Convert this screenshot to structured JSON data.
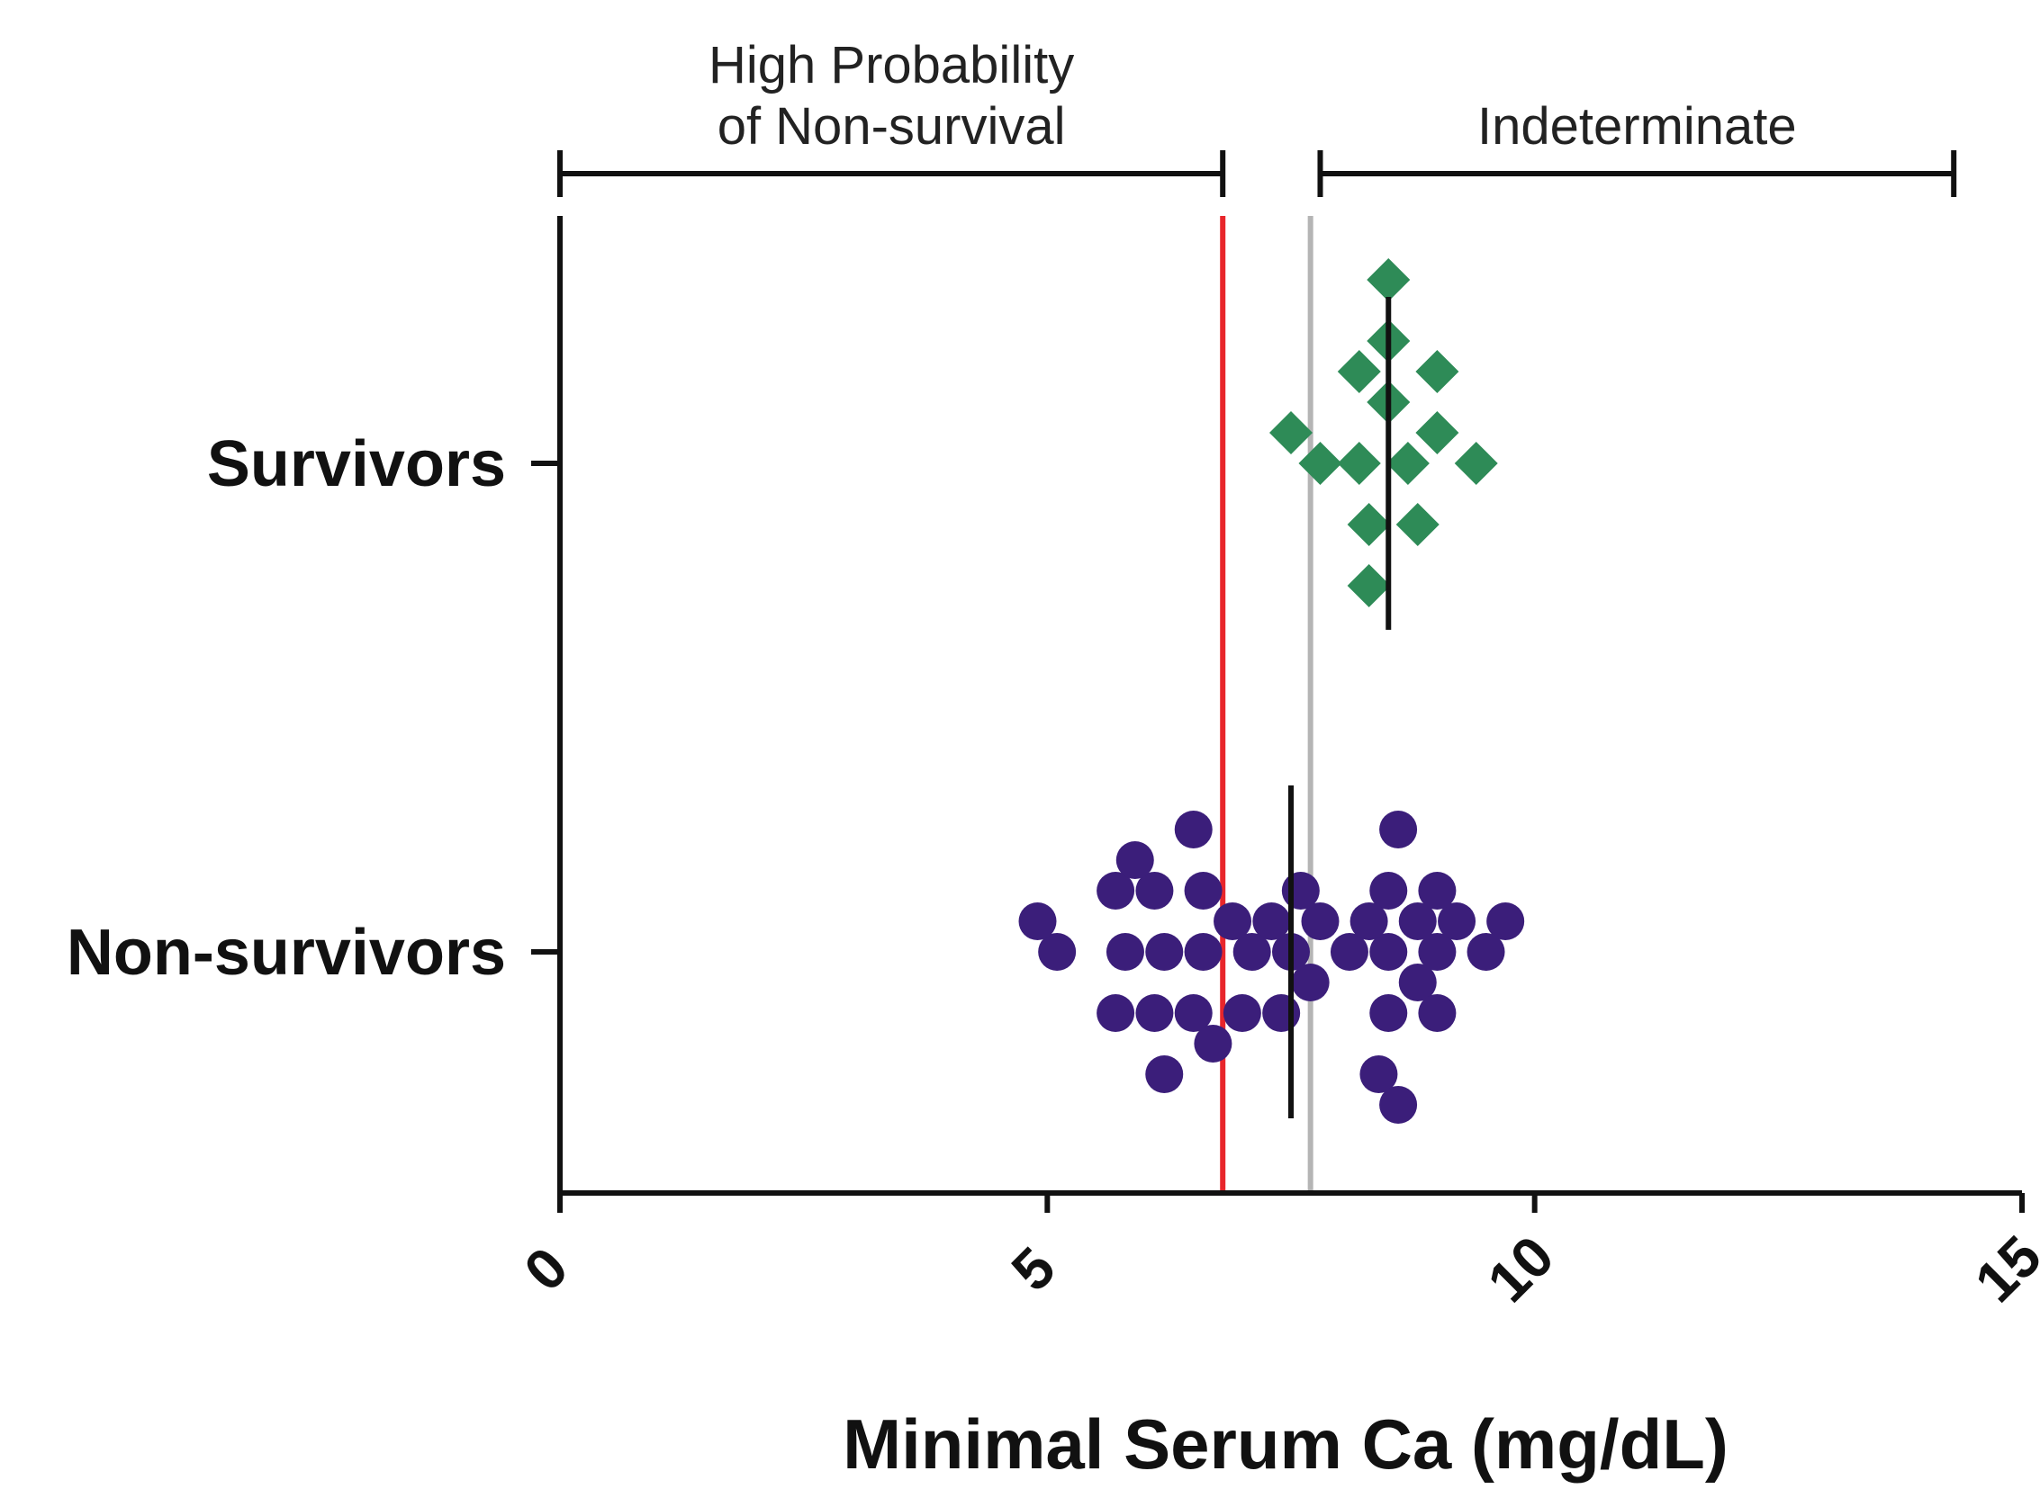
{
  "chart_data": {
    "type": "scatter",
    "title": "",
    "xlabel": "Minimal Serum Ca (mg/dL)",
    "ylabel": "",
    "xlim": [
      0,
      15
    ],
    "x_ticks": [
      0,
      5,
      10,
      15
    ],
    "x_tick_labels": [
      "0",
      "5",
      "10",
      "15"
    ],
    "categories": [
      "Survivors",
      "Non-survivors"
    ],
    "reference_lines": [
      {
        "name": "cutoff-high-probability",
        "x": 6.8,
        "color": "#e8262b"
      },
      {
        "name": "cutoff-indeterminate",
        "x": 7.7,
        "color": "#b5b5b5"
      }
    ],
    "brackets": [
      {
        "name": "high-probability-bracket",
        "label_lines": [
          "High Probability",
          "of Non-survival"
        ],
        "x_start": 0,
        "x_end": 6.8
      },
      {
        "name": "indeterminate-bracket",
        "label_lines": [
          "Indeterminate"
        ],
        "x_start": 7.8,
        "x_end": 14.3
      }
    ],
    "series": [
      {
        "name": "Survivors",
        "category": "Survivors",
        "marker": "diamond",
        "color": "#2e8b57",
        "median": 8.5,
        "values": [
          8.7,
          8.2,
          8.5,
          7.8,
          9.0,
          9.4,
          8.3,
          8.5,
          7.5,
          8.8,
          9.0,
          8.3,
          8.2,
          8.5
        ]
      },
      {
        "name": "Non-survivors",
        "category": "Non-survivors",
        "marker": "circle",
        "color": "#3b1e7a",
        "median": 7.5,
        "values": [
          6.6,
          8.5,
          9.0,
          5.8,
          7.5,
          6.2,
          6.6,
          8.1,
          8.5,
          8.8,
          9.5,
          5.1,
          5.7,
          7.3,
          6.1,
          6.5,
          6.9,
          7.8,
          8.5,
          9.2,
          4.9,
          5.7,
          7.1,
          7.6,
          6.1,
          6.5,
          7.0,
          7.7,
          8.3,
          8.6,
          8.8,
          9.0,
          9.7,
          5.9,
          7.4,
          6.2,
          6.7,
          8.4,
          8.6,
          9.0
        ]
      }
    ]
  }
}
